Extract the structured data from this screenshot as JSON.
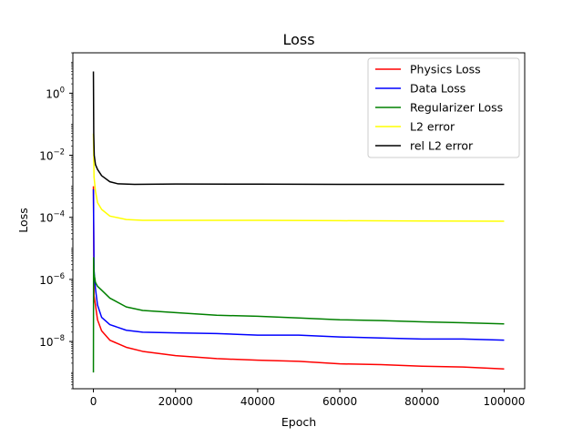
{
  "chart_data": {
    "type": "line",
    "title": "Loss",
    "xlabel": "Epoch",
    "ylabel": "Loss",
    "xlim": [
      -5000,
      105000
    ],
    "ylim": [
      3e-10,
      20
    ],
    "yscale": "log",
    "x_ticks": [
      0,
      20000,
      40000,
      60000,
      80000,
      100000
    ],
    "x_tick_labels": [
      "0",
      "20000",
      "40000",
      "60000",
      "80000",
      "100000"
    ],
    "y_ticks": [
      1e-08,
      1e-06,
      0.0001,
      0.01,
      1
    ],
    "y_tick_labels": [
      {
        "base": "10",
        "exp": "−8"
      },
      {
        "base": "10",
        "exp": "−6"
      },
      {
        "base": "10",
        "exp": "−4"
      },
      {
        "base": "10",
        "exp": "−2"
      },
      {
        "base": "10",
        "exp": "0"
      }
    ],
    "grid": false,
    "legend_position": "top-right",
    "series": [
      {
        "name": "Physics Loss",
        "color": "#ff0000",
        "points": [
          [
            0,
            0.001
          ],
          [
            150,
            3e-07
          ],
          [
            500,
            1.5e-07
          ],
          [
            1000,
            5e-08
          ],
          [
            2000,
            2.2e-08
          ],
          [
            4000,
            1.1e-08
          ],
          [
            8000,
            6.5e-09
          ],
          [
            12000,
            4.8e-09
          ],
          [
            20000,
            3.5e-09
          ],
          [
            30000,
            2.8e-09
          ],
          [
            40000,
            2.5e-09
          ],
          [
            50000,
            2.3e-09
          ],
          [
            60000,
            1.9e-09
          ],
          [
            70000,
            1.8e-09
          ],
          [
            80000,
            1.6e-09
          ],
          [
            90000,
            1.5e-09
          ],
          [
            100000,
            1.3e-09
          ]
        ]
      },
      {
        "name": "Data Loss",
        "color": "#0000ff",
        "points": [
          [
            0,
            0.0008
          ],
          [
            150,
            2e-06
          ],
          [
            500,
            5e-07
          ],
          [
            1000,
            1.5e-07
          ],
          [
            2000,
            6e-08
          ],
          [
            4000,
            3.5e-08
          ],
          [
            8000,
            2.3e-08
          ],
          [
            12000,
            2e-08
          ],
          [
            20000,
            1.9e-08
          ],
          [
            30000,
            1.8e-08
          ],
          [
            40000,
            1.6e-08
          ],
          [
            50000,
            1.6e-08
          ],
          [
            60000,
            1.4e-08
          ],
          [
            70000,
            1.3e-08
          ],
          [
            80000,
            1.2e-08
          ],
          [
            90000,
            1.2e-08
          ],
          [
            100000,
            1.1e-08
          ]
        ]
      },
      {
        "name": "Regularizer Loss",
        "color": "#008000",
        "points": [
          [
            0,
            1e-09
          ],
          [
            40,
            5e-06
          ],
          [
            150,
            1.5e-06
          ],
          [
            500,
            8e-07
          ],
          [
            1000,
            6e-07
          ],
          [
            2000,
            4.5e-07
          ],
          [
            4000,
            2.5e-07
          ],
          [
            8000,
            1.3e-07
          ],
          [
            12000,
            1e-07
          ],
          [
            20000,
            8.5e-08
          ],
          [
            30000,
            7e-08
          ],
          [
            40000,
            6.5e-08
          ],
          [
            50000,
            5.7e-08
          ],
          [
            60000,
            5e-08
          ],
          [
            70000,
            4.7e-08
          ],
          [
            80000,
            4.3e-08
          ],
          [
            90000,
            4e-08
          ],
          [
            100000,
            3.7e-08
          ]
        ]
      },
      {
        "name": "L2 error",
        "color": "#ffff00",
        "points": [
          [
            0,
            0.05
          ],
          [
            150,
            0.002
          ],
          [
            500,
            0.0007
          ],
          [
            1000,
            0.0003
          ],
          [
            2000,
            0.00018
          ],
          [
            4000,
            0.00011
          ],
          [
            8000,
            8.5e-05
          ],
          [
            12000,
            8e-05
          ],
          [
            20000,
            8e-05
          ],
          [
            40000,
            8e-05
          ],
          [
            60000,
            7.8e-05
          ],
          [
            80000,
            7.6e-05
          ],
          [
            100000,
            7.5e-05
          ]
        ]
      },
      {
        "name": "rel L2 error",
        "color": "#000000",
        "points": [
          [
            0,
            5
          ],
          [
            80,
            0.05
          ],
          [
            200,
            0.01
          ],
          [
            500,
            0.005
          ],
          [
            1000,
            0.0035
          ],
          [
            2000,
            0.0022
          ],
          [
            4000,
            0.0014
          ],
          [
            6000,
            0.0012
          ],
          [
            10000,
            0.00115
          ],
          [
            20000,
            0.00118
          ],
          [
            40000,
            0.00117
          ],
          [
            60000,
            0.00115
          ],
          [
            80000,
            0.00115
          ],
          [
            100000,
            0.00115
          ]
        ]
      }
    ]
  }
}
